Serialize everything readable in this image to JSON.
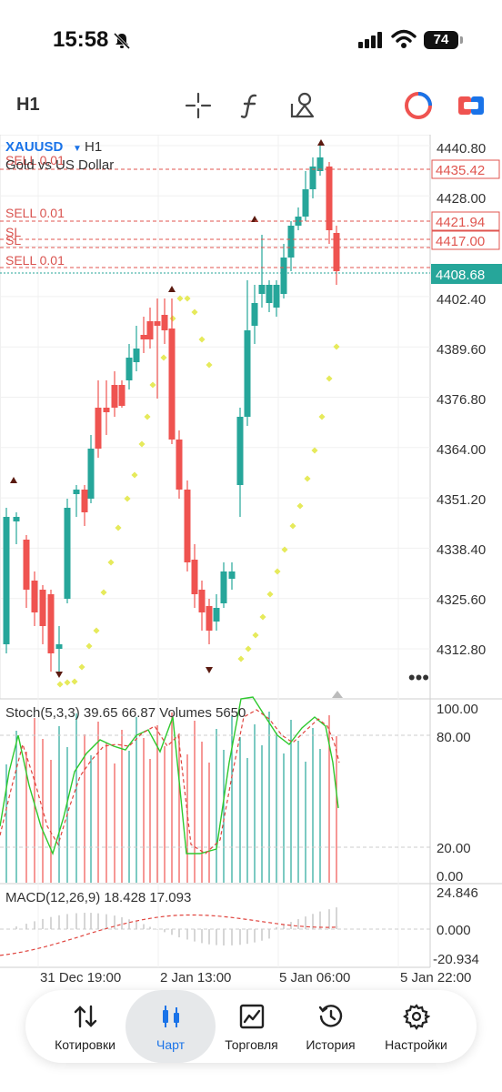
{
  "status": {
    "time": "15:58",
    "battery": "74"
  },
  "toolbar": {
    "timeframe": "H1"
  },
  "chart": {
    "symbol": "XAUUSD",
    "timeframe": "H1",
    "description": "Gold vs US Dollar",
    "price_levels": [
      "4440.80",
      "4428.00",
      "4402.40",
      "4389.60",
      "4376.80",
      "4364.00",
      "4351.20",
      "4338.40",
      "4325.60",
      "4312.80"
    ],
    "tags": [
      {
        "value": "4435.42",
        "color": "#e0554f"
      },
      {
        "value": "4421.94",
        "color": "#e0554f"
      },
      {
        "value": "4417.00",
        "color": "#e0554f"
      },
      {
        "value": "4408.68",
        "color": "#26a69a"
      }
    ],
    "order_lines": [
      "SELL 0.01",
      "SELL 0.01",
      "SL",
      "SL",
      "SELL 0.01"
    ],
    "time_labels": [
      "31 Dec 19:00",
      "2 Jan 13:00",
      "5 Jan 06:00",
      "5 Jan 22:00"
    ],
    "up_color": "#26a69a",
    "down_color": "#ef5350",
    "sar_color": "#e6ea5b"
  },
  "stoch": {
    "label": "Stoch(5,3,3) 39.65 66.87 Volumes 5650",
    "levels": [
      "100.00",
      "80.00",
      "20.00",
      "0.00"
    ]
  },
  "macd": {
    "label": "MACD(12,26,9) 18.428 17.093",
    "levels": [
      "24.846",
      "0.000",
      "-20.934"
    ]
  },
  "nav": {
    "items": [
      {
        "label": "Котировки",
        "icon": "quotes-icon"
      },
      {
        "label": "Чарт",
        "icon": "candles-icon"
      },
      {
        "label": "Торговля",
        "icon": "trade-icon"
      },
      {
        "label": "История",
        "icon": "history-icon"
      },
      {
        "label": "Настройки",
        "icon": "settings-icon"
      }
    ],
    "active": 1
  }
}
